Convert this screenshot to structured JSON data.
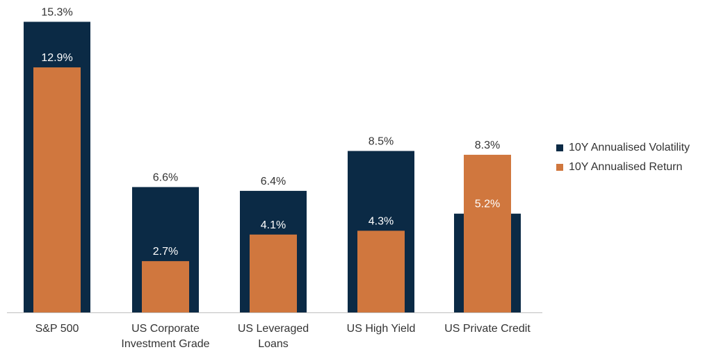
{
  "chart_data": {
    "type": "bar",
    "categories": [
      [
        "S&P 500"
      ],
      [
        "US Corporate",
        "Investment Grade"
      ],
      [
        "US Leveraged",
        "Loans"
      ],
      [
        "US High Yield"
      ],
      [
        "US Private Credit"
      ]
    ],
    "series": [
      {
        "name": "10Y Annualised Volatility",
        "color": "#0b2a45",
        "values": [
          15.3,
          6.6,
          6.4,
          8.5,
          5.2
        ],
        "labels": [
          "15.3%",
          "6.6%",
          "6.4%",
          "8.5%",
          "5.2%"
        ]
      },
      {
        "name": "10Y Annualised Return",
        "color": "#d0773e",
        "values": [
          12.9,
          2.7,
          4.1,
          4.3,
          8.3
        ],
        "labels": [
          "12.9%",
          "2.7%",
          "4.1%",
          "4.3%",
          "8.3%"
        ]
      }
    ],
    "ylim": [
      0,
      16
    ],
    "grid": false,
    "legend_position": "right",
    "title": "",
    "xlabel": "",
    "ylabel": ""
  }
}
